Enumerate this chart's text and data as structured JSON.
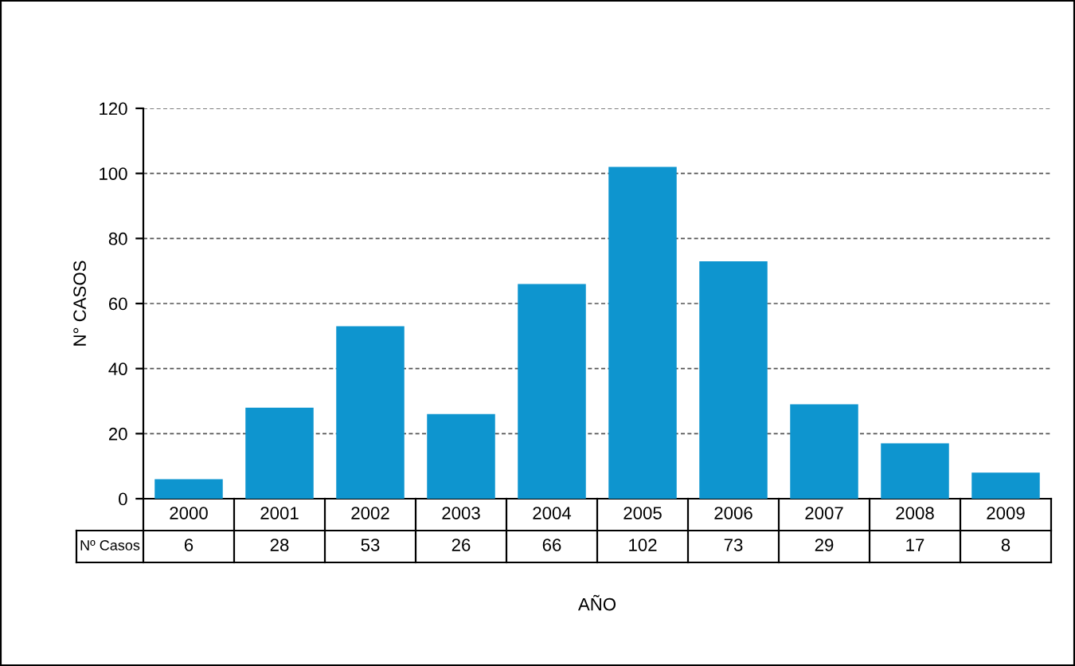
{
  "chart_data": {
    "type": "bar",
    "xlabel": "AÑO",
    "ylabel": "N° CASOS",
    "categories": [
      "2000",
      "2001",
      "2002",
      "2003",
      "2004",
      "2005",
      "2006",
      "2007",
      "2008",
      "2009"
    ],
    "series": [
      {
        "name": "Nº Casos",
        "color": "#0e95cf",
        "values": [
          6,
          28,
          53,
          26,
          66,
          102,
          73,
          29,
          17,
          8
        ]
      }
    ],
    "ylim": [
      0,
      120
    ],
    "yticks": [
      0,
      20,
      40,
      60,
      80,
      100,
      120
    ],
    "grid": "y",
    "data_labels": true
  }
}
